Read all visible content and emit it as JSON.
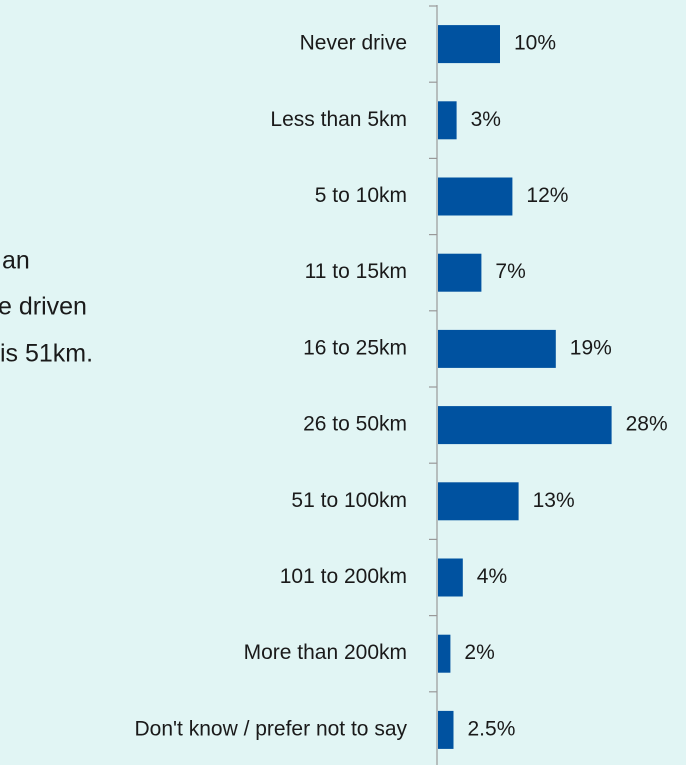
{
  "chart_data": {
    "type": "barh",
    "annotations": [
      "an",
      "e driven",
      "is 51km."
    ],
    "categories": [
      "Never drive",
      "Less than 5km",
      "5 to 10km",
      "11 to 15km",
      "16 to 25km",
      "26 to 50km",
      "51 to 100km",
      "101 to 200km",
      "More than 200km",
      "Don't know / prefer not to say"
    ],
    "values": [
      10,
      3,
      12,
      7,
      19,
      28,
      13,
      4,
      2,
      2.5
    ],
    "value_labels": [
      "10%",
      "3%",
      "12%",
      "7%",
      "19%",
      "28%",
      "13%",
      "4%",
      "2%",
      "2.5%"
    ],
    "color": "#0052a0"
  }
}
